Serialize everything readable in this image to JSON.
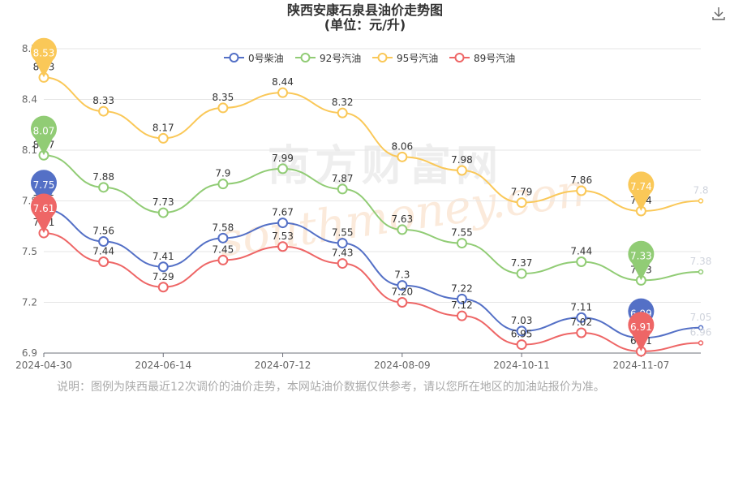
{
  "header": {
    "title": "陕西安康石泉县油价走势图",
    "subtitle": "(单位：元/升)",
    "download_icon": "download-icon"
  },
  "watermark": {
    "line1": "南方财富网",
    "line2": "southmoney.com"
  },
  "note": "说明：图例为陕西最近12次调价的油价走势，本网站油价数据仅供参考，请以您所在地区的加油站报价为准。",
  "chart_data": {
    "type": "line",
    "title": "陕西安康石泉县油价走势图",
    "subtitle": "(单位：元/升)",
    "x": [
      "2024-04-30",
      "",
      "2024-06-14",
      "",
      "2024-07-12",
      "",
      "2024-08-09",
      "",
      "2024-10-11",
      "",
      "2024-11-07",
      ""
    ],
    "x_tick_labels": [
      "2024-04-30",
      "2024-06-14",
      "2024-07-12",
      "2024-08-09",
      "2024-10-11",
      "2024-11-07"
    ],
    "x_tick_indices": [
      0,
      2,
      4,
      6,
      8,
      10
    ],
    "ylim": [
      6.9,
      8.7
    ],
    "y_ticks": [
      6.9,
      7.2,
      7.5,
      7.8,
      8.1,
      8.4,
      8.7
    ],
    "y_tick_labels": [
      "6.9",
      "7.2",
      "7.5",
      "7.8",
      "8.1",
      "8.4",
      "8.7"
    ],
    "grid": true,
    "legend_position": "top",
    "series": [
      {
        "name": "0号柴油",
        "color": "#5470c6",
        "values": [
          7.75,
          7.56,
          7.41,
          7.58,
          7.67,
          7.55,
          7.3,
          7.22,
          7.03,
          7.11,
          6.99,
          7.05
        ],
        "labels": [
          "7.75",
          "7.56",
          "7.41",
          "7.58",
          "7.67",
          "7.55",
          "7.3",
          "7.22",
          "7.03",
          "7.11",
          "6.99",
          "7.05"
        ],
        "max_index": 0,
        "min_index": 10
      },
      {
        "name": "92号汽油",
        "color": "#91cc75",
        "values": [
          8.07,
          7.88,
          7.73,
          7.9,
          7.99,
          7.87,
          7.63,
          7.55,
          7.37,
          7.44,
          7.33,
          7.38
        ],
        "labels": [
          "8.07",
          "7.88",
          "7.73",
          "7.9",
          "7.99",
          "7.87",
          "7.63",
          "7.55",
          "7.37",
          "7.44",
          "7.33",
          "7.38"
        ],
        "max_index": 0,
        "min_index": 10
      },
      {
        "name": "95号汽油",
        "color": "#fac858",
        "values": [
          8.53,
          8.33,
          8.17,
          8.35,
          8.44,
          8.32,
          8.06,
          7.98,
          7.79,
          7.86,
          7.74,
          7.8
        ],
        "labels": [
          "8.53",
          "8.33",
          "8.17",
          "8.35",
          "8.44",
          "8.32",
          "8.06",
          "7.98",
          "7.79",
          "7.86",
          "7.74",
          "7.8"
        ],
        "max_index": 0,
        "min_index": 10
      },
      {
        "name": "89号汽油",
        "color": "#ee6666",
        "values": [
          7.61,
          7.44,
          7.29,
          7.45,
          7.53,
          7.43,
          7.2,
          7.12,
          6.95,
          7.02,
          6.91,
          6.96
        ],
        "labels": [
          "7.61",
          "7.44",
          "7.29",
          "7.45",
          "7.53",
          "7.43",
          "7.20",
          "7.12",
          "6.95",
          "7.02",
          "6.91",
          "6.96"
        ],
        "max_index": 0,
        "min_index": 10
      }
    ]
  }
}
